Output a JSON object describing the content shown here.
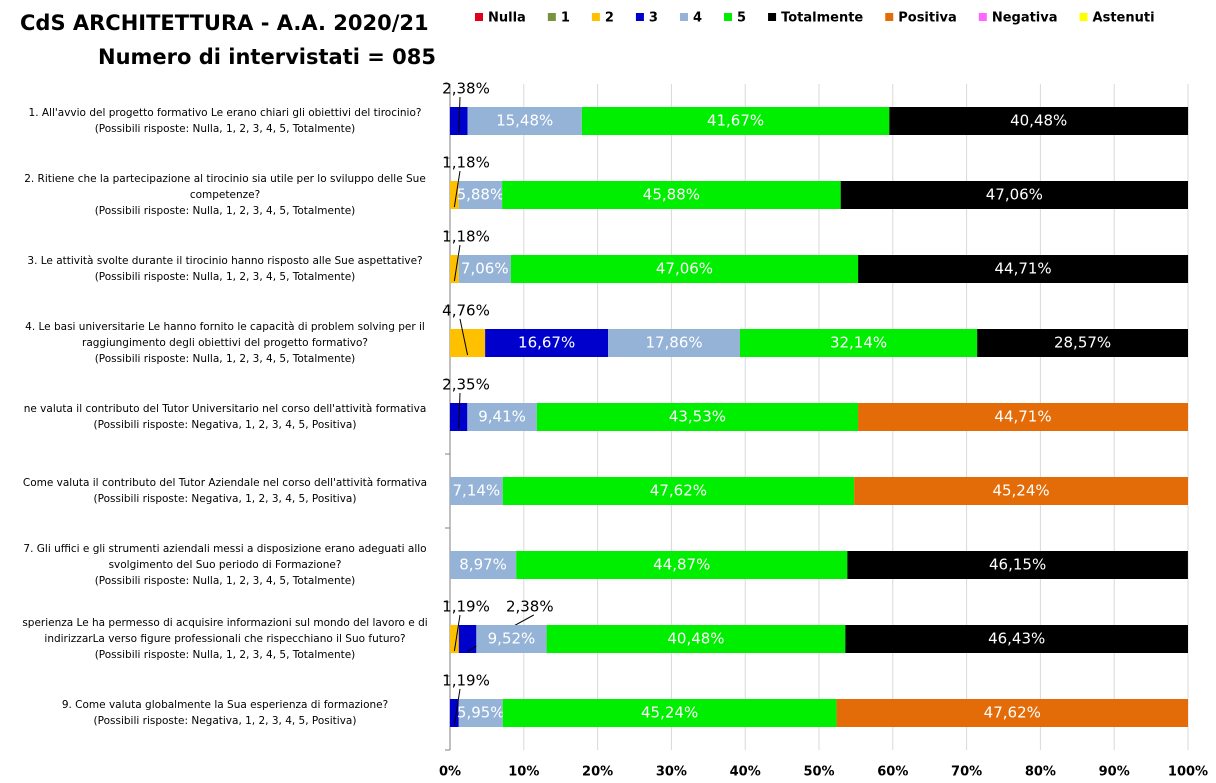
{
  "chart_data": {
    "type": "stacked-barh",
    "title": "CdS ARCHITETTURA - A.A. 2020/21",
    "subtitle": "Numero di intervistati = 085",
    "categories": [
      [
        "1. All'avvio del progetto formativo Le erano chiari gli obiettivi del tirocinio?",
        "(Possibili risposte: Nulla, 1, 2, 3, 4, 5, Totalmente)"
      ],
      [
        "2. Ritiene che la partecipazione al tirocinio sia utile per lo sviluppo delle Sue",
        "competenze?",
        "(Possibili risposte: Nulla, 1, 2, 3, 4, 5, Totalmente)"
      ],
      [
        "3. Le attività svolte durante il tirocinio hanno risposto alle Sue aspettative?",
        "(Possibili risposte: Nulla, 1, 2, 3, 4, 5, Totalmente)"
      ],
      [
        "4. Le basi universitarie Le hanno fornito le capacità di problem solving per il",
        "raggiungimento degli obiettivi del progetto formativo?",
        "(Possibili risposte: Nulla, 1, 2, 3, 4, 5, Totalmente)"
      ],
      [
        "ne valuta il contributo del Tutor Universitario nel corso dell'attività formativa",
        "(Possibili risposte: Negativa, 1, 2, 3, 4, 5, Positiva)"
      ],
      [
        "Come valuta il contributo del Tutor Aziendale nel corso dell'attività formativa",
        "(Possibili risposte: Negativa, 1, 2, 3, 4, 5, Positiva)"
      ],
      [
        "7. Gli uffici e gli strumenti aziendali messi a disposizione erano adeguati allo",
        "svolgimento del Suo periodo di Formazione?",
        "(Possibili risposte: Nulla, 1, 2, 3, 4, 5, Totalmente)"
      ],
      [
        "sperienza Le ha permesso di acquisire informazioni sul mondo del lavoro e di",
        "indirizzarLa verso figure professionali che rispecchiano il Suo futuro?",
        "(Possibili risposte: Nulla, 1, 2, 3, 4, 5, Totalmente)"
      ],
      [
        "9. Come valuta globalmente la Sua esperienza di formazione?",
        "(Possibili risposte: Negativa, 1, 2, 3, 4, 5, Positiva)"
      ]
    ],
    "series": [
      {
        "name": "Nulla",
        "color": "#e0001b",
        "values": [
          null,
          null,
          null,
          null,
          null,
          null,
          null,
          null,
          null
        ],
        "value_labels": [
          null,
          null,
          null,
          null,
          null,
          null,
          null,
          null,
          null
        ]
      },
      {
        "name": "1",
        "color": "#77933c",
        "values": [
          null,
          null,
          null,
          null,
          null,
          null,
          null,
          null,
          null
        ],
        "value_labels": [
          null,
          null,
          null,
          null,
          null,
          null,
          null,
          null,
          null
        ]
      },
      {
        "name": "2",
        "color": "#ffc000",
        "values": [
          null,
          1.18,
          1.18,
          4.76,
          null,
          null,
          null,
          1.19,
          null
        ],
        "value_labels": [
          null,
          "1,18%",
          "1,18%",
          "4,76%",
          null,
          null,
          null,
          "1,19%",
          null
        ]
      },
      {
        "name": "3",
        "color": "#0000cc",
        "values": [
          2.38,
          null,
          null,
          16.67,
          2.35,
          null,
          null,
          2.38,
          1.19
        ],
        "value_labels": [
          "2,38%",
          null,
          null,
          "16,67%",
          "2,35%",
          null,
          null,
          "2,38%",
          "1,19%"
        ]
      },
      {
        "name": "4",
        "color": "#95b3d7",
        "values": [
          15.48,
          5.88,
          7.06,
          17.86,
          9.41,
          7.14,
          8.97,
          9.52,
          5.95
        ],
        "value_labels": [
          "15,48%",
          "5,88%",
          "7,06%",
          "17,86%",
          "9,41%",
          "7,14%",
          "8,97%",
          "9,52%",
          "5,95%"
        ]
      },
      {
        "name": "5",
        "color": "#00ee00",
        "values": [
          41.67,
          45.88,
          47.06,
          32.14,
          43.53,
          47.62,
          44.87,
          40.48,
          45.24
        ],
        "value_labels": [
          "41,67%",
          "45,88%",
          "47,06%",
          "32,14%",
          "43,53%",
          "47,62%",
          "44,87%",
          "40,48%",
          "45,24%"
        ]
      },
      {
        "name": "Totalmente",
        "color": "#000000",
        "values": [
          40.48,
          47.06,
          44.71,
          28.57,
          null,
          null,
          46.15,
          46.43,
          null
        ],
        "value_labels": [
          "40,48%",
          "47,06%",
          "44,71%",
          "28,57%",
          null,
          null,
          "46,15%",
          "46,43%",
          null
        ]
      },
      {
        "name": "Positiva",
        "color": "#e36c09",
        "values": [
          null,
          null,
          null,
          null,
          44.71,
          45.24,
          null,
          null,
          47.62
        ],
        "value_labels": [
          null,
          null,
          null,
          null,
          "44,71%",
          "45,24%",
          null,
          null,
          "47,62%"
        ]
      },
      {
        "name": "Negativa",
        "color": "#ff66ff",
        "values": [
          null,
          null,
          null,
          null,
          null,
          null,
          null,
          null,
          null
        ],
        "value_labels": [
          null,
          null,
          null,
          null,
          null,
          null,
          null,
          null,
          null
        ]
      },
      {
        "name": "Astenuti",
        "color": "#ffff00",
        "values": [
          null,
          null,
          null,
          null,
          null,
          null,
          null,
          null,
          null
        ],
        "value_labels": [
          null,
          null,
          null,
          null,
          null,
          null,
          null,
          null,
          null
        ]
      }
    ],
    "xlim": [
      0,
      100
    ],
    "xticks": [
      {
        "value": 0,
        "label": "0%"
      },
      {
        "value": 10,
        "label": "10%"
      },
      {
        "value": 20,
        "label": "20%"
      },
      {
        "value": 30,
        "label": "30%"
      },
      {
        "value": 40,
        "label": "40%"
      },
      {
        "value": 50,
        "label": "50%"
      },
      {
        "value": 60,
        "label": "60%"
      },
      {
        "value": 70,
        "label": "70%"
      },
      {
        "value": 80,
        "label": "80%"
      },
      {
        "value": 90,
        "label": "90%"
      },
      {
        "value": 100,
        "label": "100%"
      }
    ],
    "grid": true,
    "legend": "top"
  }
}
